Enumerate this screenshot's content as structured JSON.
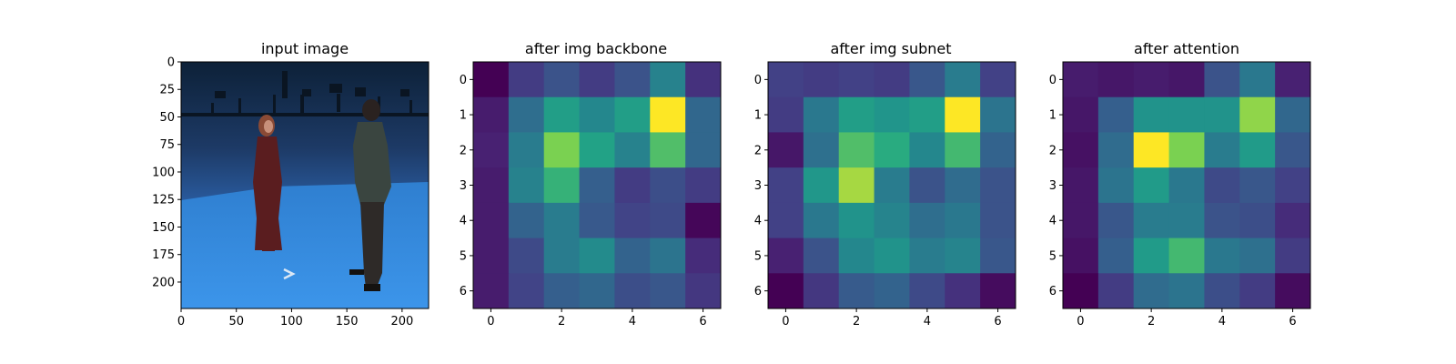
{
  "figure": {
    "colormap": "viridis"
  },
  "chart_data": [
    {
      "type": "image",
      "title": "input image",
      "xlabel": "",
      "ylabel": "",
      "xlim": [
        0,
        224
      ],
      "ylim": [
        224,
        0
      ],
      "x_ticks": [
        0,
        50,
        100,
        150,
        200
      ],
      "y_ticks": [
        0,
        25,
        50,
        75,
        100,
        125,
        150,
        175,
        200
      ],
      "content": {
        "scene": "motion-capture studio with blue backdrop and blue floor, two people standing facing each other",
        "colors": {
          "backdrop_top": "#0d2138",
          "backdrop_mid": "#1d3a66",
          "backdrop_low": "#2a5ca0",
          "floor_far": "#2f7fd0",
          "floor_near": "#3c95ea",
          "rig": "#0a1522",
          "woman_dress": "#5a1d1f",
          "woman_hair": "#8a4a35",
          "man_jacket": "#3a4540",
          "man_pants": "#2e2a28"
        }
      }
    },
    {
      "type": "heatmap",
      "title": "after img backbone",
      "xlabel": "",
      "ylabel": "",
      "x_ticks": [
        0,
        2,
        4,
        6
      ],
      "y_ticks": [
        0,
        1,
        2,
        3,
        4,
        5,
        6
      ],
      "grid": false,
      "values": [
        [
          0.0,
          0.22,
          0.32,
          0.22,
          0.32,
          0.55,
          0.18
        ],
        [
          0.1,
          0.45,
          0.7,
          0.58,
          0.7,
          1.0,
          0.42
        ],
        [
          0.12,
          0.52,
          0.88,
          0.72,
          0.55,
          0.82,
          0.42
        ],
        [
          0.1,
          0.55,
          0.78,
          0.38,
          0.22,
          0.3,
          0.22
        ],
        [
          0.1,
          0.4,
          0.52,
          0.35,
          0.25,
          0.28,
          0.02
        ],
        [
          0.1,
          0.28,
          0.52,
          0.6,
          0.4,
          0.48,
          0.16
        ],
        [
          0.1,
          0.25,
          0.38,
          0.42,
          0.3,
          0.34,
          0.2
        ]
      ]
    },
    {
      "type": "heatmap",
      "title": "after img subnet",
      "xlabel": "",
      "ylabel": "",
      "x_ticks": [
        0,
        2,
        4,
        6
      ],
      "y_ticks": [
        0,
        1,
        2,
        3,
        4,
        5,
        6
      ],
      "grid": false,
      "values": [
        [
          0.24,
          0.22,
          0.24,
          0.22,
          0.34,
          0.52,
          0.24
        ],
        [
          0.22,
          0.5,
          0.7,
          0.65,
          0.7,
          1.0,
          0.48
        ],
        [
          0.08,
          0.46,
          0.82,
          0.76,
          0.58,
          0.8,
          0.4
        ],
        [
          0.24,
          0.66,
          0.92,
          0.52,
          0.32,
          0.44,
          0.32
        ],
        [
          0.24,
          0.5,
          0.64,
          0.56,
          0.45,
          0.5,
          0.32
        ],
        [
          0.12,
          0.32,
          0.58,
          0.64,
          0.52,
          0.56,
          0.34
        ],
        [
          0.0,
          0.2,
          0.36,
          0.4,
          0.28,
          0.18,
          0.04
        ]
      ]
    },
    {
      "type": "heatmap",
      "title": "after attention",
      "xlabel": "",
      "ylabel": "",
      "x_ticks": [
        0,
        2,
        4,
        6
      ],
      "y_ticks": [
        0,
        1,
        2,
        3,
        4,
        5,
        6
      ],
      "grid": false,
      "values": [
        [
          0.1,
          0.08,
          0.1,
          0.08,
          0.32,
          0.5,
          0.12
        ],
        [
          0.08,
          0.38,
          0.64,
          0.64,
          0.64,
          0.9,
          0.42
        ],
        [
          0.06,
          0.44,
          1.0,
          0.88,
          0.52,
          0.68,
          0.34
        ],
        [
          0.08,
          0.48,
          0.68,
          0.5,
          0.28,
          0.34,
          0.24
        ],
        [
          0.08,
          0.34,
          0.52,
          0.52,
          0.32,
          0.3,
          0.16
        ],
        [
          0.06,
          0.38,
          0.68,
          0.8,
          0.5,
          0.46,
          0.22
        ],
        [
          0.0,
          0.22,
          0.44,
          0.48,
          0.3,
          0.22,
          0.04
        ]
      ]
    }
  ]
}
